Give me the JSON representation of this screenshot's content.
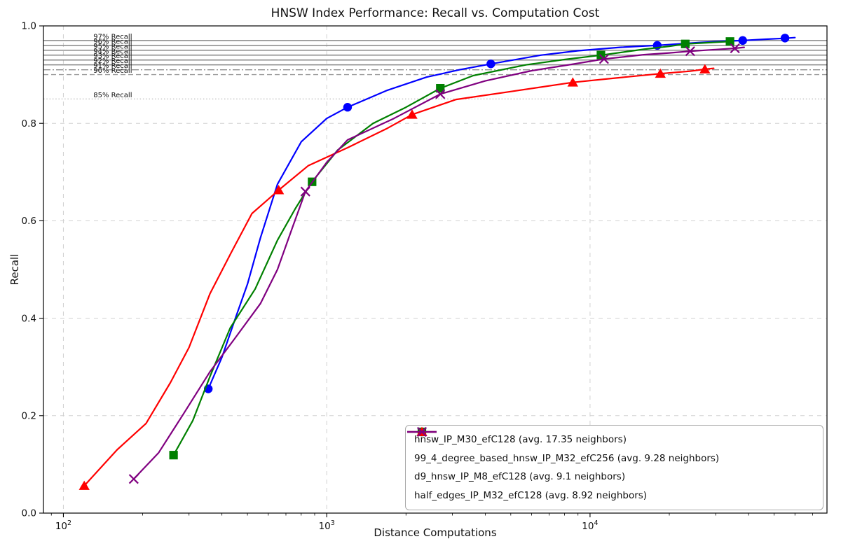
{
  "chart_data": {
    "type": "line",
    "title": "HNSW Index Performance: Recall vs. Computation Cost",
    "xlabel": "Distance Computations",
    "ylabel": "Recall",
    "x_scale": "log",
    "xlim": [
      84,
      79400
    ],
    "ylim": [
      0.0,
      1.0
    ],
    "grid": true,
    "legend_position": "lower right",
    "xticks": [
      {
        "value": 100,
        "base": "10",
        "exp": "2"
      },
      {
        "value": 1000,
        "base": "10",
        "exp": "3"
      },
      {
        "value": 10000,
        "base": "10",
        "exp": "4"
      }
    ],
    "yticks": [
      {
        "value": 0.0,
        "label": "0.0"
      },
      {
        "value": 0.2,
        "label": "0.2"
      },
      {
        "value": 0.4,
        "label": "0.4"
      },
      {
        "value": 0.6,
        "label": "0.6"
      },
      {
        "value": 0.8,
        "label": "0.8"
      },
      {
        "value": 1.0,
        "label": "1.0"
      }
    ],
    "reference_lines": [
      {
        "recall": 0.97,
        "label": "97% Recall",
        "style": "solid"
      },
      {
        "recall": 0.96,
        "label": "96% Recall",
        "style": "solid"
      },
      {
        "recall": 0.95,
        "label": "95% Recall",
        "style": "solid"
      },
      {
        "recall": 0.94,
        "label": "94% Recall",
        "style": "solid"
      },
      {
        "recall": 0.93,
        "label": "93% Recall",
        "style": "solid"
      },
      {
        "recall": 0.92,
        "label": "92% Recall",
        "style": "solid"
      },
      {
        "recall": 0.91,
        "label": "91% Recall",
        "style": "dashdot"
      },
      {
        "recall": 0.9,
        "label": "90% Recall",
        "style": "dashed"
      },
      {
        "recall": 0.85,
        "label": "85% Recall",
        "style": "dotted"
      }
    ],
    "reference_label_x": 130,
    "series": [
      {
        "label": "hnsw_IP_M30_efC128 (avg. 17.35 neighbors)",
        "color": "#0000ff",
        "marker": "circle",
        "points": [
          [
            355,
            0.255
          ],
          [
            1200,
            0.833
          ],
          [
            4200,
            0.922
          ],
          [
            18000,
            0.96
          ],
          [
            38000,
            0.97
          ],
          [
            55000,
            0.975
          ]
        ],
        "curve": [
          [
            355,
            0.255
          ],
          [
            400,
            0.32
          ],
          [
            450,
            0.4
          ],
          [
            500,
            0.47
          ],
          [
            560,
            0.565
          ],
          [
            650,
            0.675
          ],
          [
            800,
            0.762
          ],
          [
            1000,
            0.81
          ],
          [
            1200,
            0.833
          ],
          [
            1700,
            0.868
          ],
          [
            2400,
            0.895
          ],
          [
            3200,
            0.91
          ],
          [
            4200,
            0.922
          ],
          [
            6500,
            0.94
          ],
          [
            9000,
            0.949
          ],
          [
            13000,
            0.956
          ],
          [
            18000,
            0.96
          ],
          [
            26000,
            0.966
          ],
          [
            32000,
            0.9685
          ],
          [
            38000,
            0.97
          ],
          [
            46000,
            0.9725
          ],
          [
            55000,
            0.9745
          ],
          [
            60000,
            0.976
          ]
        ]
      },
      {
        "label": "99_4_degree_based_hnsw_IP_M32_efC256 (avg. 9.28 neighbors)",
        "color": "#008000",
        "marker": "square",
        "points": [
          [
            262,
            0.119
          ],
          [
            880,
            0.68
          ],
          [
            2700,
            0.872
          ],
          [
            11000,
            0.94
          ],
          [
            23000,
            0.963
          ],
          [
            34000,
            0.968
          ]
        ],
        "curve": [
          [
            262,
            0.119
          ],
          [
            310,
            0.19
          ],
          [
            360,
            0.28
          ],
          [
            430,
            0.38
          ],
          [
            535,
            0.46
          ],
          [
            650,
            0.56
          ],
          [
            760,
            0.625
          ],
          [
            880,
            0.68
          ],
          [
            1100,
            0.745
          ],
          [
            1500,
            0.8
          ],
          [
            2000,
            0.833
          ],
          [
            2700,
            0.872
          ],
          [
            3600,
            0.898
          ],
          [
            5700,
            0.92
          ],
          [
            8000,
            0.931
          ],
          [
            11000,
            0.94
          ],
          [
            16000,
            0.952
          ],
          [
            20000,
            0.958
          ],
          [
            23000,
            0.963
          ],
          [
            28000,
            0.9655
          ],
          [
            34000,
            0.968
          ]
        ]
      },
      {
        "label": "d9_hnsw_IP_M8_efC128 (avg. 9.1 neighbors)",
        "color": "#ff0000",
        "marker": "triangle",
        "points": [
          [
            120,
            0.056
          ],
          [
            657,
            0.663
          ],
          [
            2110,
            0.818
          ],
          [
            8600,
            0.884
          ],
          [
            18500,
            0.902
          ],
          [
            27300,
            0.911
          ]
        ],
        "curve": [
          [
            120,
            0.056
          ],
          [
            160,
            0.13
          ],
          [
            206,
            0.184
          ],
          [
            255,
            0.268
          ],
          [
            300,
            0.34
          ],
          [
            360,
            0.45
          ],
          [
            434,
            0.535
          ],
          [
            520,
            0.615
          ],
          [
            657,
            0.663
          ],
          [
            850,
            0.713
          ],
          [
            1200,
            0.75
          ],
          [
            1700,
            0.79
          ],
          [
            2110,
            0.818
          ],
          [
            3100,
            0.849
          ],
          [
            5100,
            0.866
          ],
          [
            8600,
            0.884
          ],
          [
            12500,
            0.893
          ],
          [
            18500,
            0.902
          ],
          [
            24000,
            0.907
          ],
          [
            27300,
            0.911
          ],
          [
            29500,
            0.913
          ]
        ]
      },
      {
        "label": "half_edges_IP_M32_efC128 (avg. 8.92 neighbors)",
        "color": "#800080",
        "marker": "x",
        "points": [
          [
            185,
            0.07
          ],
          [
            830,
            0.66
          ],
          [
            2700,
            0.86
          ],
          [
            11300,
            0.932
          ],
          [
            24000,
            0.948
          ],
          [
            35500,
            0.954
          ]
        ],
        "curve": [
          [
            185,
            0.07
          ],
          [
            230,
            0.124
          ],
          [
            283,
            0.2
          ],
          [
            360,
            0.29
          ],
          [
            450,
            0.36
          ],
          [
            560,
            0.43
          ],
          [
            650,
            0.5
          ],
          [
            740,
            0.585
          ],
          [
            830,
            0.66
          ],
          [
            1000,
            0.72
          ],
          [
            1200,
            0.766
          ],
          [
            1800,
            0.81
          ],
          [
            2700,
            0.86
          ],
          [
            4000,
            0.887
          ],
          [
            6000,
            0.908
          ],
          [
            8500,
            0.921
          ],
          [
            11300,
            0.932
          ],
          [
            16000,
            0.941
          ],
          [
            20000,
            0.9445
          ],
          [
            24000,
            0.948
          ],
          [
            30000,
            0.9515
          ],
          [
            35500,
            0.954
          ],
          [
            38500,
            0.956
          ]
        ]
      }
    ]
  }
}
